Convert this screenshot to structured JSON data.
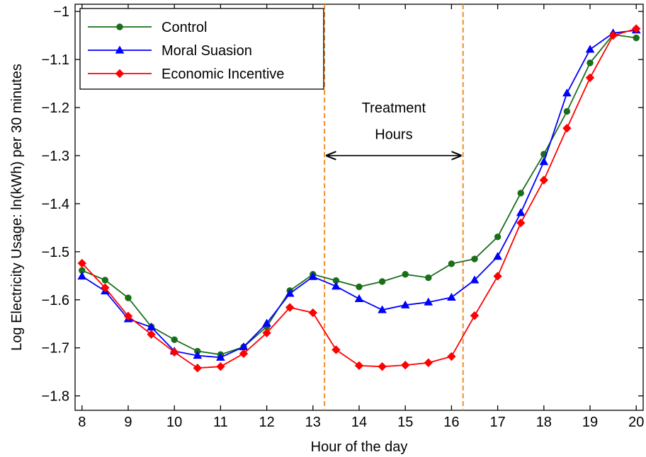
{
  "chart_data": {
    "type": "line",
    "xlabel": "Hour of the day",
    "ylabel": "Log Electricity Usage: ln(kWh) per 30 minutes",
    "xlim": [
      7.85,
      20.15
    ],
    "ylim": [
      -1.83,
      -0.985
    ],
    "xticks": [
      8,
      9,
      10,
      11,
      12,
      13,
      14,
      15,
      16,
      17,
      18,
      19,
      20
    ],
    "xtick_labels": [
      "8",
      "9",
      "10",
      "11",
      "12",
      "13",
      "14",
      "15",
      "16",
      "17",
      "18",
      "19",
      "20"
    ],
    "yticks": [
      -1.8,
      -1.7,
      -1.6,
      -1.5,
      -1.4,
      -1.3,
      -1.2,
      -1.1,
      -1.0
    ],
    "ytick_labels": [
      "−1.8",
      "−1.7",
      "−1.6",
      "−1.5",
      "−1.4",
      "−1.3",
      "−1.2",
      "−1.1",
      "−1"
    ],
    "grid": false,
    "legend_position": "top-left",
    "x": [
      8,
      8.5,
      9,
      9.5,
      10,
      10.5,
      11,
      11.5,
      12,
      12.5,
      13,
      13.5,
      14,
      14.5,
      15,
      15.5,
      16,
      16.5,
      17,
      17.5,
      18,
      18.5,
      19,
      19.5,
      20
    ],
    "series": [
      {
        "name": "Control",
        "color": "#1a6e1a",
        "marker": "circle",
        "values": [
          -1.539,
          -1.559,
          -1.596,
          -1.656,
          -1.683,
          -1.707,
          -1.714,
          -1.698,
          -1.656,
          -1.581,
          -1.547,
          -1.56,
          -1.573,
          -1.562,
          -1.547,
          -1.554,
          -1.525,
          -1.515,
          -1.469,
          -1.378,
          -1.297,
          -1.208,
          -1.107,
          -1.048,
          -1.055
        ]
      },
      {
        "name": "Moral Suasion",
        "color": "#0000ff",
        "marker": "triangle",
        "values": [
          -1.551,
          -1.582,
          -1.64,
          -1.657,
          -1.707,
          -1.716,
          -1.72,
          -1.698,
          -1.649,
          -1.587,
          -1.552,
          -1.572,
          -1.598,
          -1.621,
          -1.611,
          -1.605,
          -1.595,
          -1.559,
          -1.51,
          -1.419,
          -1.313,
          -1.17,
          -1.079,
          -1.045,
          -1.039
        ]
      },
      {
        "name": "Economic Incentive",
        "color": "#ff0000",
        "marker": "diamond",
        "values": [
          -1.524,
          -1.575,
          -1.634,
          -1.672,
          -1.709,
          -1.742,
          -1.739,
          -1.712,
          -1.669,
          -1.616,
          -1.627,
          -1.704,
          -1.737,
          -1.739,
          -1.736,
          -1.731,
          -1.718,
          -1.633,
          -1.551,
          -1.44,
          -1.351,
          -1.243,
          -1.138,
          -1.05,
          -1.036
        ]
      }
    ],
    "vlines": [
      {
        "x": 13.25,
        "color": "#f0902a"
      },
      {
        "x": 16.25,
        "color": "#f0902a"
      }
    ],
    "annotation": {
      "lines": [
        "Treatment",
        "Hours"
      ],
      "arrow_x": [
        13.25,
        16.25
      ],
      "arrow_y": -1.3,
      "text_x": 14.75,
      "text_y": [
        -1.2,
        -1.255
      ]
    }
  }
}
